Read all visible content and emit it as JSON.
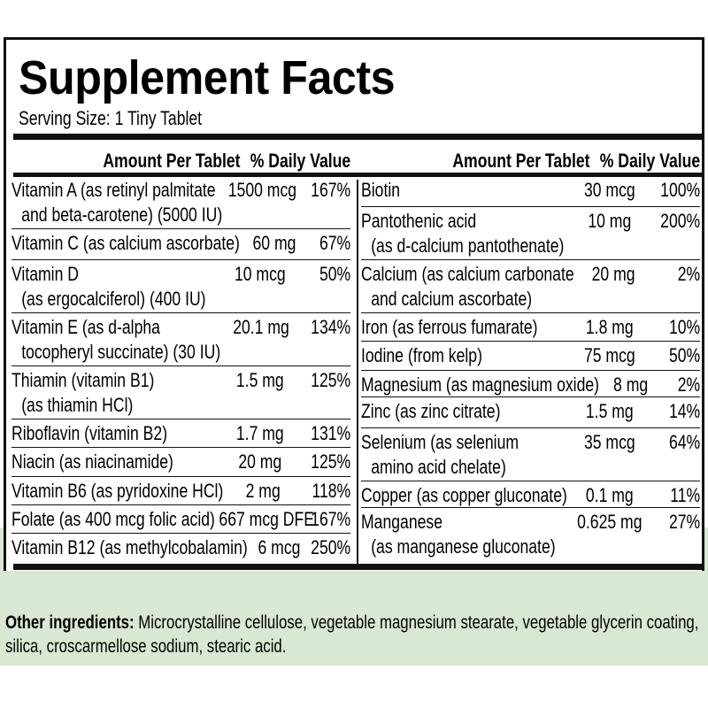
{
  "header": {
    "title": "Supplement Facts",
    "serving_size": "Serving Size: 1 Tiny Tablet"
  },
  "columns": [
    {
      "headers": [
        "Amount Per Tablet",
        "% Daily Value"
      ],
      "rows": [
        {
          "nutrient": [
            "Vitamin A (as retinyl palmitate",
            "and beta-carotene) (5000 IU)"
          ],
          "amount": "1500 mcg",
          "daily_value": "167%"
        },
        {
          "nutrient": [
            "Vitamin C (as calcium ascorbate)"
          ],
          "amount": "60 mg",
          "daily_value": "67%"
        },
        {
          "nutrient": [
            "Vitamin D",
            "(as ergocalciferol) (400 IU)"
          ],
          "amount": "10 mcg",
          "daily_value": "50%"
        },
        {
          "nutrient": [
            "Vitamin E (as d-alpha",
            "tocopheryl succinate) (30 IU)"
          ],
          "amount": "20.1 mg",
          "daily_value": "134%"
        },
        {
          "nutrient": [
            "Thiamin (vitamin B1)",
            "(as thiamin HCl)"
          ],
          "amount": "1.5 mg",
          "daily_value": "125%"
        },
        {
          "nutrient": [
            "Riboflavin (vitamin B2)"
          ],
          "amount": "1.7 mg",
          "daily_value": "131%"
        },
        {
          "nutrient": [
            "Niacin (as niacinamide)"
          ],
          "amount": "20 mg",
          "daily_value": "125%"
        },
        {
          "nutrient": [
            "Vitamin B6 (as pyridoxine HCl)"
          ],
          "amount": "2 mg",
          "daily_value": "118%"
        },
        {
          "nutrient": [
            "Folate (as 400 mcg folic acid)"
          ],
          "amount": "667 mcg DFE",
          "daily_value": "167%"
        },
        {
          "nutrient": [
            "Vitamin B12 (as methylcobalamin)"
          ],
          "amount": "6 mcg",
          "daily_value": "250%"
        }
      ]
    },
    {
      "headers": [
        "Amount Per Tablet",
        "% Daily Value"
      ],
      "rows": [
        {
          "nutrient": [
            "Biotin"
          ],
          "amount": "30 mcg",
          "daily_value": "100%"
        },
        {
          "nutrient": [
            "Pantothenic acid",
            "(as d-calcium pantothenate)"
          ],
          "amount": "10 mg",
          "daily_value": "200%"
        },
        {
          "nutrient": [
            "Calcium (as calcium carbonate",
            "and calcium ascorbate)"
          ],
          "amount": "20 mg",
          "daily_value": "2%"
        },
        {
          "nutrient": [
            "Iron (as ferrous fumarate)"
          ],
          "amount": "1.8 mg",
          "daily_value": "10%"
        },
        {
          "nutrient": [
            "Iodine (from kelp)"
          ],
          "amount": "75 mcg",
          "daily_value": "50%"
        },
        {
          "nutrient": [
            "Magnesium (as magnesium oxide)"
          ],
          "amount": "8 mg",
          "daily_value": "2%"
        },
        {
          "nutrient": [
            "Zinc (as zinc citrate)"
          ],
          "amount": "1.5 mg",
          "daily_value": "14%"
        },
        {
          "nutrient": [
            "Selenium (as selenium",
            "amino acid chelate)"
          ],
          "amount": "35 mcg",
          "daily_value": "64%"
        },
        {
          "nutrient": [
            "Copper (as copper gluconate)"
          ],
          "amount": "0.1 mg",
          "daily_value": "11%"
        },
        {
          "nutrient": [
            "Manganese",
            "(as manganese gluconate)"
          ],
          "amount": "0.625 mg",
          "daily_value": "27%"
        }
      ]
    }
  ],
  "other_ingredients": {
    "label": "Other ingredients:",
    "text": "Microcrystalline cellulose, vegetable magnesium stearate, vegetable glycerin coating, silica, croscarmellose sodium, stearic acid."
  }
}
